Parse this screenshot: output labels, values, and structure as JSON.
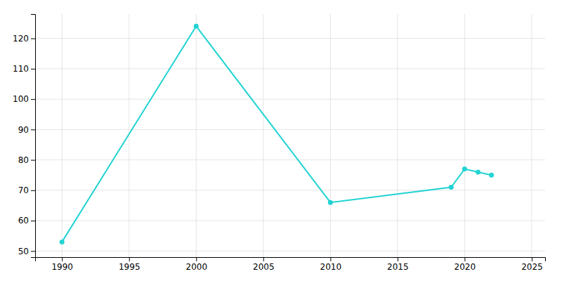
{
  "chart_data": {
    "type": "line",
    "x": [
      1990,
      2000,
      2010,
      2019,
      2020,
      2021,
      2022
    ],
    "values": [
      53,
      124,
      66,
      71,
      77,
      76,
      75
    ],
    "color": "#22d3d3",
    "marker": "circle",
    "xlim": [
      1988,
      2026
    ],
    "ylim": [
      48,
      128
    ],
    "xticks": [
      1990,
      1995,
      2000,
      2005,
      2010,
      2015,
      2020,
      2025
    ],
    "yticks": [
      50,
      60,
      70,
      80,
      90,
      100,
      110,
      120
    ],
    "grid": true
  }
}
